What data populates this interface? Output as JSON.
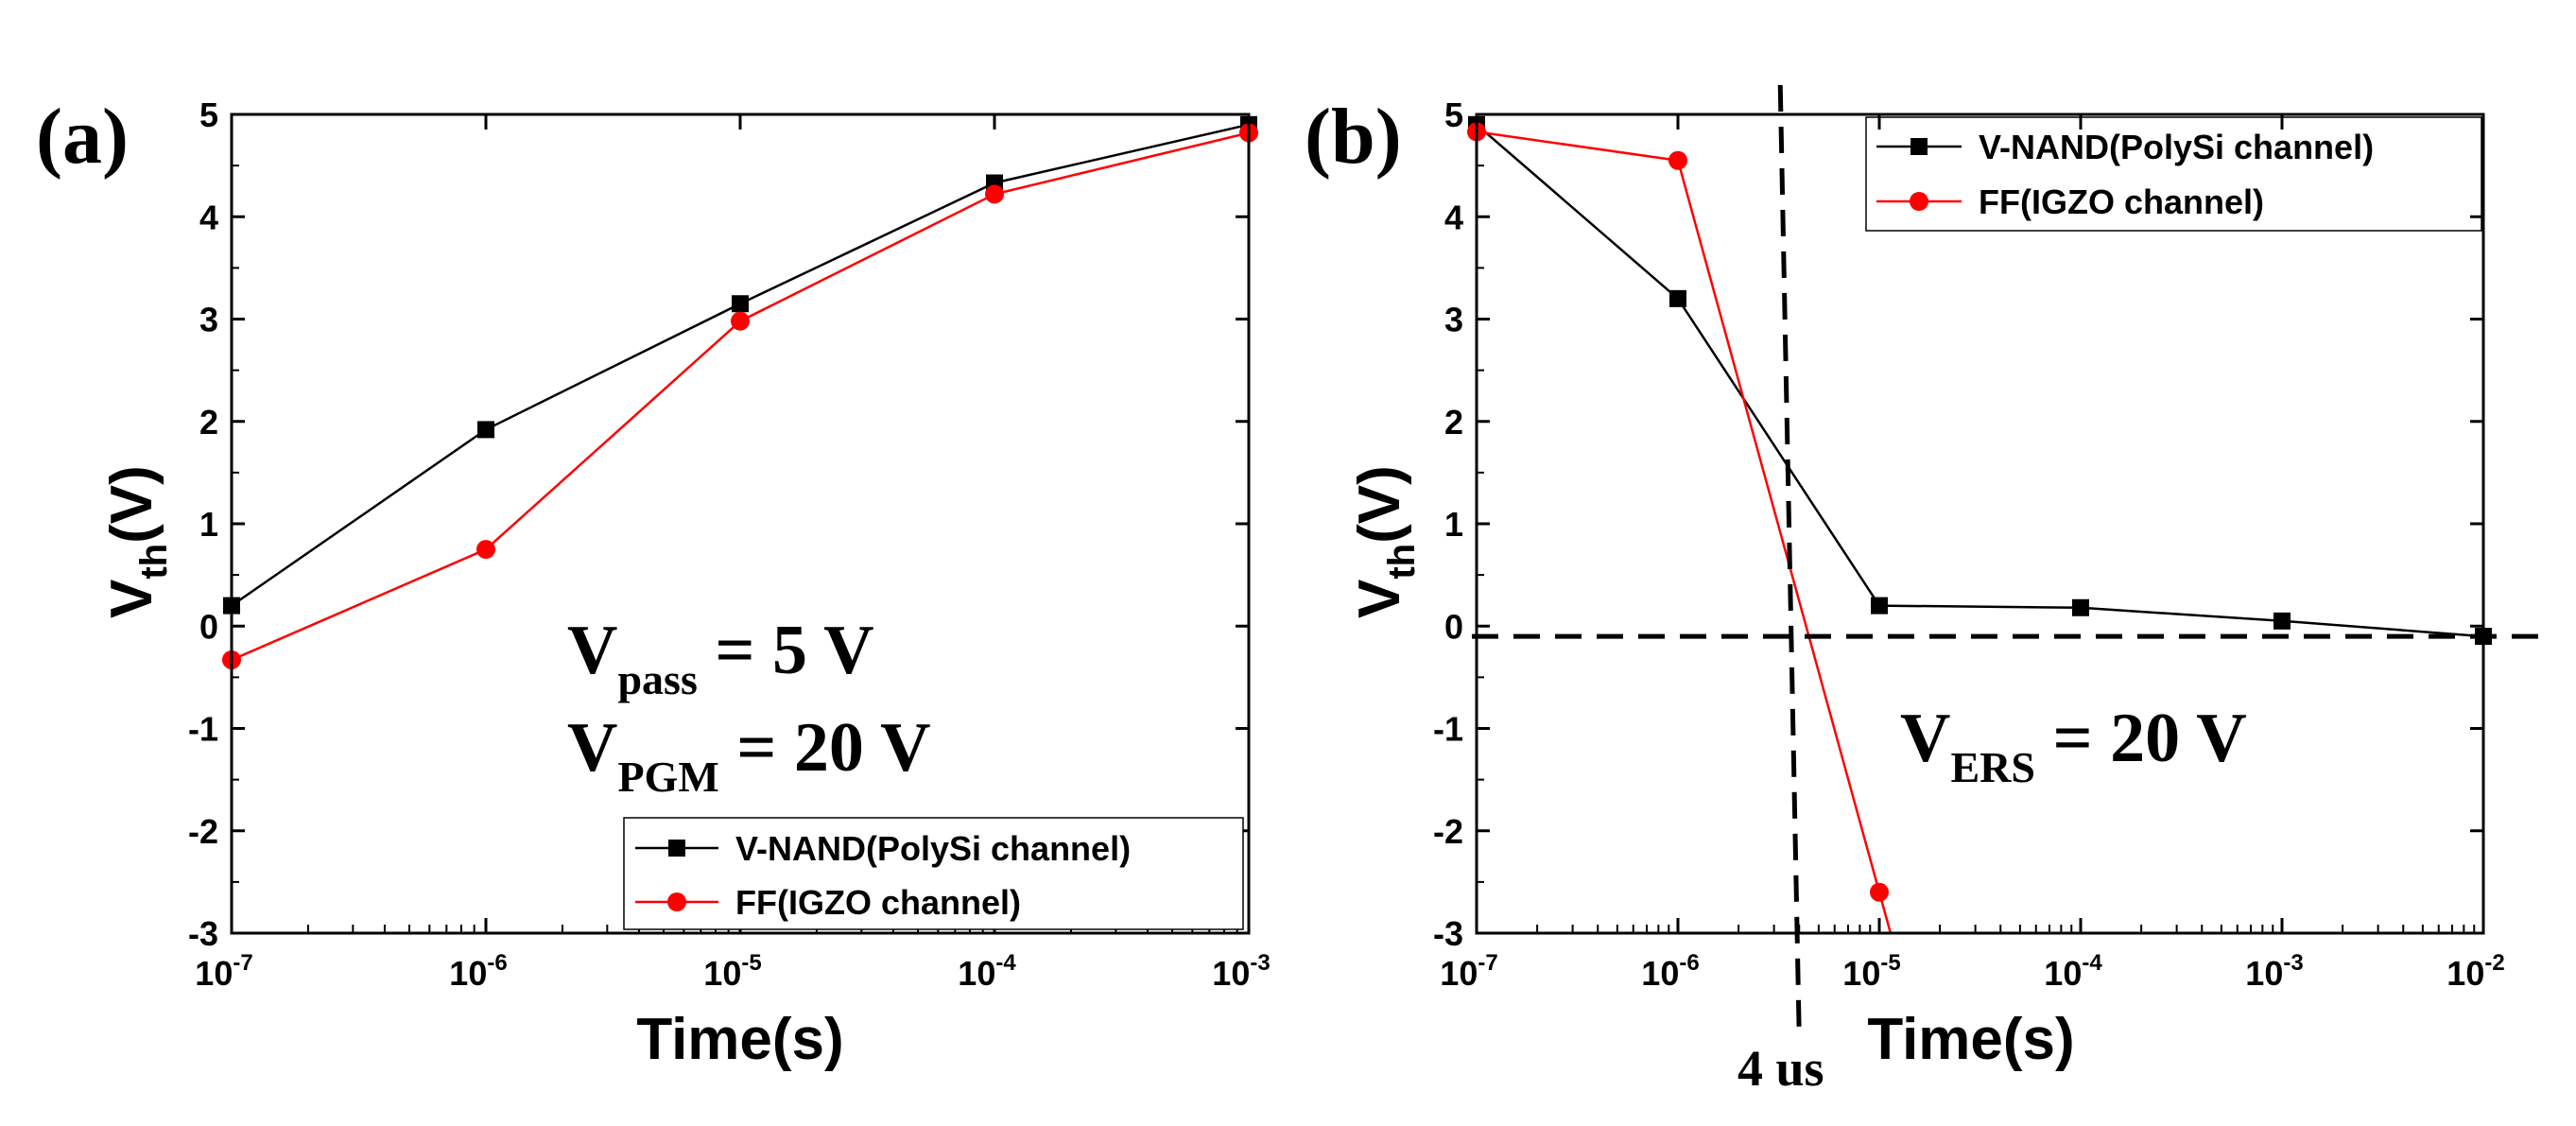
{
  "chart_data": [
    {
      "panel": "(a)",
      "type": "line",
      "x_scale": "log",
      "xlim": [
        1e-07,
        0.001
      ],
      "ylim": [
        -3,
        5
      ],
      "xlabel": "Time(s)",
      "ylabel": "V",
      "ylabel_sub": "th",
      "ylabel_suffix": "(V)",
      "x_ticks": [
        {
          "base": "10",
          "exp": "-7",
          "value": 1e-07
        },
        {
          "base": "10",
          "exp": "-6",
          "value": 1e-06
        },
        {
          "base": "10",
          "exp": "-5",
          "value": 1e-05
        },
        {
          "base": "10",
          "exp": "-4",
          "value": 0.0001
        },
        {
          "base": "10",
          "exp": "-3",
          "value": 0.001
        }
      ],
      "y_ticks": [
        "-3",
        "-2",
        "-1",
        "0",
        "1",
        "2",
        "3",
        "4",
        "5"
      ],
      "legend_position": "bottom-right",
      "series": [
        {
          "name": "V-NAND(PolySi channel)",
          "color": "#000000",
          "marker": "square",
          "x": [
            1e-07,
            1e-06,
            1e-05,
            0.0001,
            0.001
          ],
          "y": [
            0.2,
            1.92,
            3.15,
            4.33,
            4.9
          ]
        },
        {
          "name": "FF(IGZO channel)",
          "color": "#ff0000",
          "marker": "circle",
          "x": [
            1e-07,
            1e-06,
            1e-05,
            0.0001,
            0.001
          ],
          "y": [
            -0.33,
            0.75,
            2.98,
            4.22,
            4.82
          ]
        }
      ],
      "annotations": [
        {
          "main": "V",
          "sub": "pass",
          "rest": " = 5 V"
        },
        {
          "main": "V",
          "sub": "PGM",
          "rest": " = 20 V"
        }
      ]
    },
    {
      "panel": "(b)",
      "type": "line",
      "x_scale": "log",
      "xlim": [
        1e-07,
        0.01
      ],
      "ylim": [
        -3,
        5
      ],
      "xlabel": "Time(s)",
      "ylabel": "V",
      "ylabel_sub": "th",
      "ylabel_suffix": "(V)",
      "x_ticks": [
        {
          "base": "10",
          "exp": "-7",
          "value": 1e-07
        },
        {
          "base": "10",
          "exp": "-6",
          "value": 1e-06
        },
        {
          "base": "10",
          "exp": "-5",
          "value": 1e-05
        },
        {
          "base": "10",
          "exp": "-4",
          "value": 0.0001
        },
        {
          "base": "10",
          "exp": "-3",
          "value": 0.001
        },
        {
          "base": "10",
          "exp": "-2",
          "value": 0.01
        }
      ],
      "y_ticks": [
        "-3",
        "-2",
        "-1",
        "0",
        "1",
        "2",
        "3",
        "4",
        "5"
      ],
      "legend_position": "top-right",
      "series": [
        {
          "name": "V-NAND(PolySi channel)",
          "color": "#000000",
          "marker": "square",
          "x": [
            1e-07,
            1e-06,
            1e-05,
            0.0001,
            0.001,
            0.01
          ],
          "y": [
            4.9,
            3.2,
            0.2,
            0.18,
            0.05,
            -0.1
          ]
        },
        {
          "name": "FF(IGZO channel)",
          "color": "#ff0000",
          "marker": "circle",
          "x": [
            1e-07,
            1e-06,
            1e-05
          ],
          "y": [
            4.83,
            4.55,
            -2.6
          ],
          "extends_below_axis": true
        }
      ],
      "reference_lines": {
        "vertical_x": 4e-06,
        "horizontal_y": -0.1
      },
      "annotations": [
        {
          "main": "V",
          "sub": "ERS",
          "rest": " = 20 V"
        }
      ],
      "vline_label": "4 us"
    }
  ]
}
